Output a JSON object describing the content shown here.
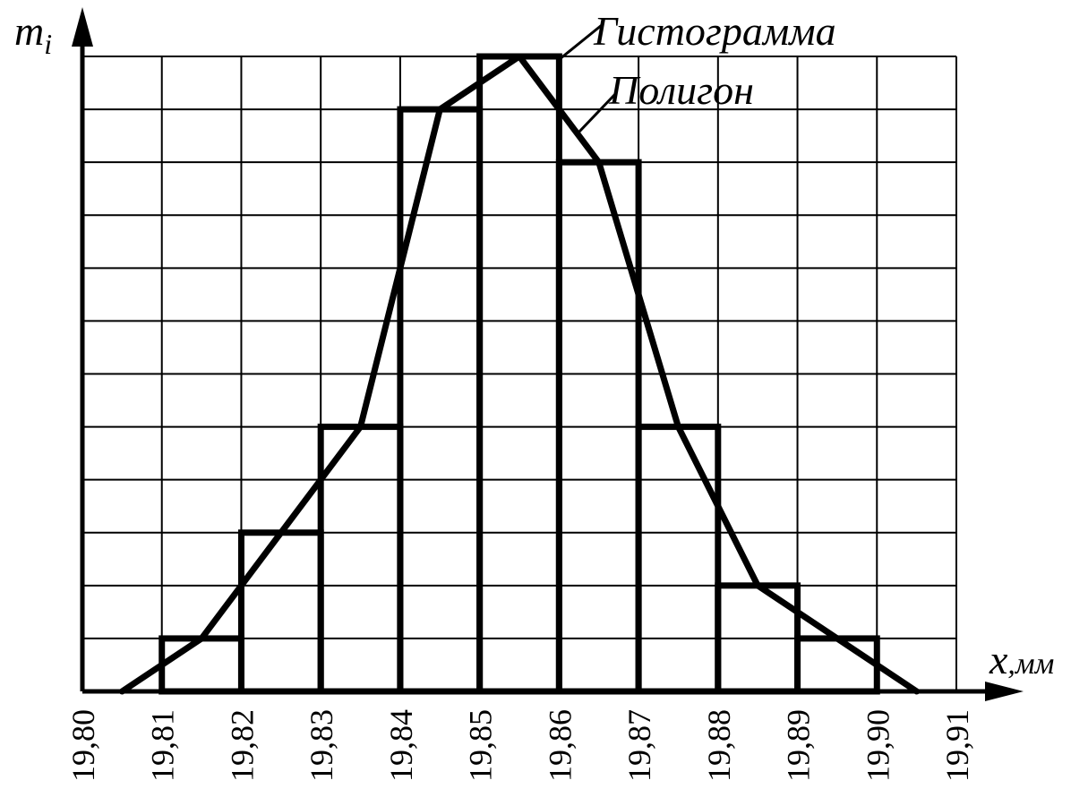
{
  "chart_data": {
    "type": "bar",
    "title": "",
    "xlabel": "x",
    "xlabel_unit": ",мм",
    "ylabel": "m",
    "ylabel_sub": "i",
    "x_ticks": [
      "19,80",
      "19,81",
      "19,82",
      "19,83",
      "19,84",
      "19,85",
      "19,86",
      "19,87",
      "19,88",
      "19,89",
      "19,90",
      "19,91"
    ],
    "xlim": [
      19.8,
      19.91
    ],
    "ylim": [
      0,
      12
    ],
    "grid": true,
    "histogram": {
      "name": "Гистограмма",
      "bins": [
        {
          "from": 19.81,
          "to": 19.82,
          "value": 1
        },
        {
          "from": 19.82,
          "to": 19.83,
          "value": 3
        },
        {
          "from": 19.83,
          "to": 19.84,
          "value": 5
        },
        {
          "from": 19.84,
          "to": 19.85,
          "value": 11
        },
        {
          "from": 19.85,
          "to": 19.86,
          "value": 12
        },
        {
          "from": 19.86,
          "to": 19.87,
          "value": 10
        },
        {
          "from": 19.87,
          "to": 19.88,
          "value": 5
        },
        {
          "from": 19.88,
          "to": 19.89,
          "value": 2
        },
        {
          "from": 19.89,
          "to": 19.9,
          "value": 1
        }
      ]
    },
    "polygon": {
      "name": "Полигон",
      "points": [
        {
          "x": 19.805,
          "y": 0
        },
        {
          "x": 19.815,
          "y": 1
        },
        {
          "x": 19.825,
          "y": 3
        },
        {
          "x": 19.835,
          "y": 5
        },
        {
          "x": 19.845,
          "y": 11
        },
        {
          "x": 19.855,
          "y": 12
        },
        {
          "x": 19.865,
          "y": 10
        },
        {
          "x": 19.875,
          "y": 5
        },
        {
          "x": 19.885,
          "y": 2
        },
        {
          "x": 19.895,
          "y": 1
        },
        {
          "x": 19.905,
          "y": 0
        }
      ]
    },
    "colors": {
      "stroke": "#000000",
      "background": "#ffffff"
    }
  }
}
